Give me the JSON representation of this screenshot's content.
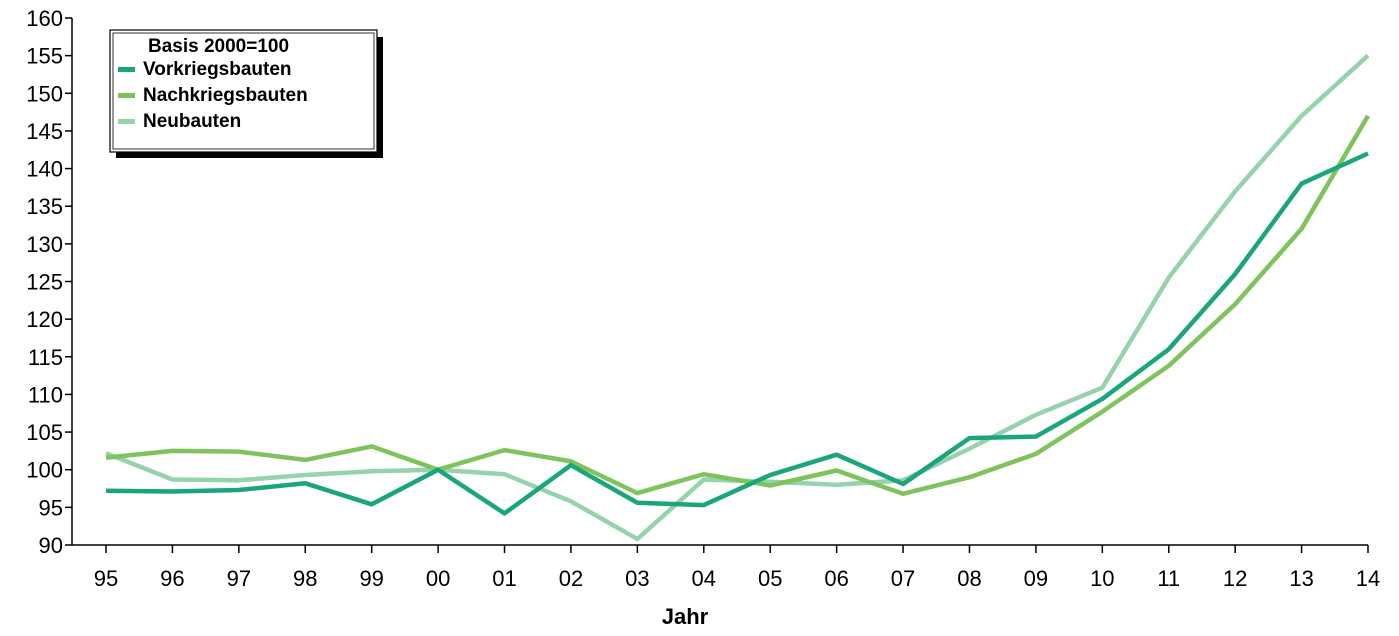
{
  "chart_data": {
    "type": "line",
    "xlabel": "Jahr",
    "ylabel": "",
    "ylim": [
      90,
      160
    ],
    "yticks": [
      90,
      95,
      100,
      105,
      110,
      115,
      120,
      125,
      130,
      135,
      140,
      145,
      150,
      155,
      160
    ],
    "categories": [
      "95",
      "96",
      "97",
      "98",
      "99",
      "00",
      "01",
      "02",
      "03",
      "04",
      "05",
      "06",
      "07",
      "08",
      "09",
      "10",
      "11",
      "12",
      "13",
      "14"
    ],
    "legend": {
      "title": "Basis 2000=100",
      "placement": "top-left"
    },
    "grid": false,
    "series": [
      {
        "name": "Vorkriegsbauten",
        "color": "#1aa57a",
        "values": [
          97.2,
          97.1,
          97.3,
          98.2,
          95.4,
          100.0,
          94.2,
          100.6,
          95.6,
          95.3,
          99.3,
          102.0,
          98.1,
          104.2,
          104.4,
          109.4,
          116.0,
          126.0,
          138.0,
          142.0
        ]
      },
      {
        "name": "Nachkriegsbauten",
        "color": "#7fc35c",
        "values": [
          101.6,
          102.5,
          102.4,
          101.3,
          103.1,
          100.0,
          102.6,
          101.1,
          96.9,
          99.4,
          97.9,
          99.9,
          96.8,
          99.0,
          102.1,
          107.7,
          113.8,
          122.0,
          132.0,
          147.0
        ]
      },
      {
        "name": "Neubauten",
        "color": "#96d3ad",
        "values": [
          102.2,
          98.7,
          98.6,
          99.3,
          99.8,
          100.0,
          99.4,
          95.8,
          90.8,
          98.7,
          98.4,
          98.0,
          98.6,
          102.8,
          107.3,
          110.9,
          125.5,
          137.0,
          147.0,
          155.0
        ]
      }
    ]
  }
}
